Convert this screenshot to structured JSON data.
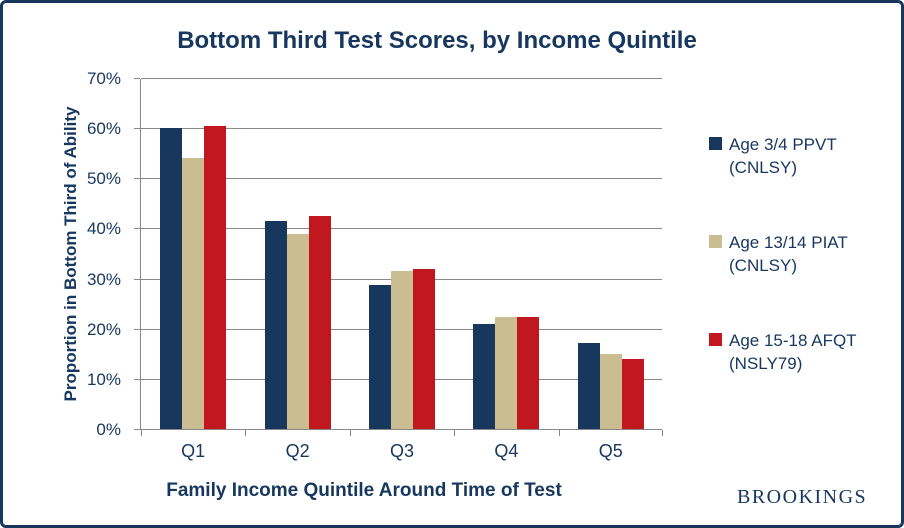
{
  "colors": {
    "border": "#17375E",
    "text_navy": "#17375E",
    "gridline": "#898989",
    "background": "#FFFFFF"
  },
  "footer": {
    "logo_text": "BROOKINGS"
  },
  "chart_data": {
    "type": "bar",
    "title": "Bottom Third Test Scores, by Income Quintile",
    "xlabel": "Family Income Quintile Around Time of Test",
    "ylabel": "Proportion in Bottom Third of Ability",
    "categories": [
      "Q1",
      "Q2",
      "Q3",
      "Q4",
      "Q5"
    ],
    "series": [
      {
        "name": "Age 3/4 PPVT (CNLSY)",
        "color": "#17375D",
        "values": [
          60.0,
          41.4,
          28.7,
          21.0,
          17.1
        ]
      },
      {
        "name": "Age 13/14 PIAT (CNLSY)",
        "color": "#CBBD92",
        "values": [
          54.0,
          38.8,
          31.5,
          22.3,
          14.9
        ]
      },
      {
        "name": "Age 15-18 AFQT (NSLY79)",
        "color": "#C0181E",
        "values": [
          60.5,
          42.5,
          32.0,
          22.4,
          13.9
        ]
      }
    ],
    "ylim": [
      0,
      70
    ],
    "ytick_step": 10,
    "ytick_labels": [
      "0%",
      "10%",
      "20%",
      "30%",
      "40%",
      "50%",
      "60%",
      "70%"
    ],
    "grid": true,
    "legend_position": "right"
  }
}
